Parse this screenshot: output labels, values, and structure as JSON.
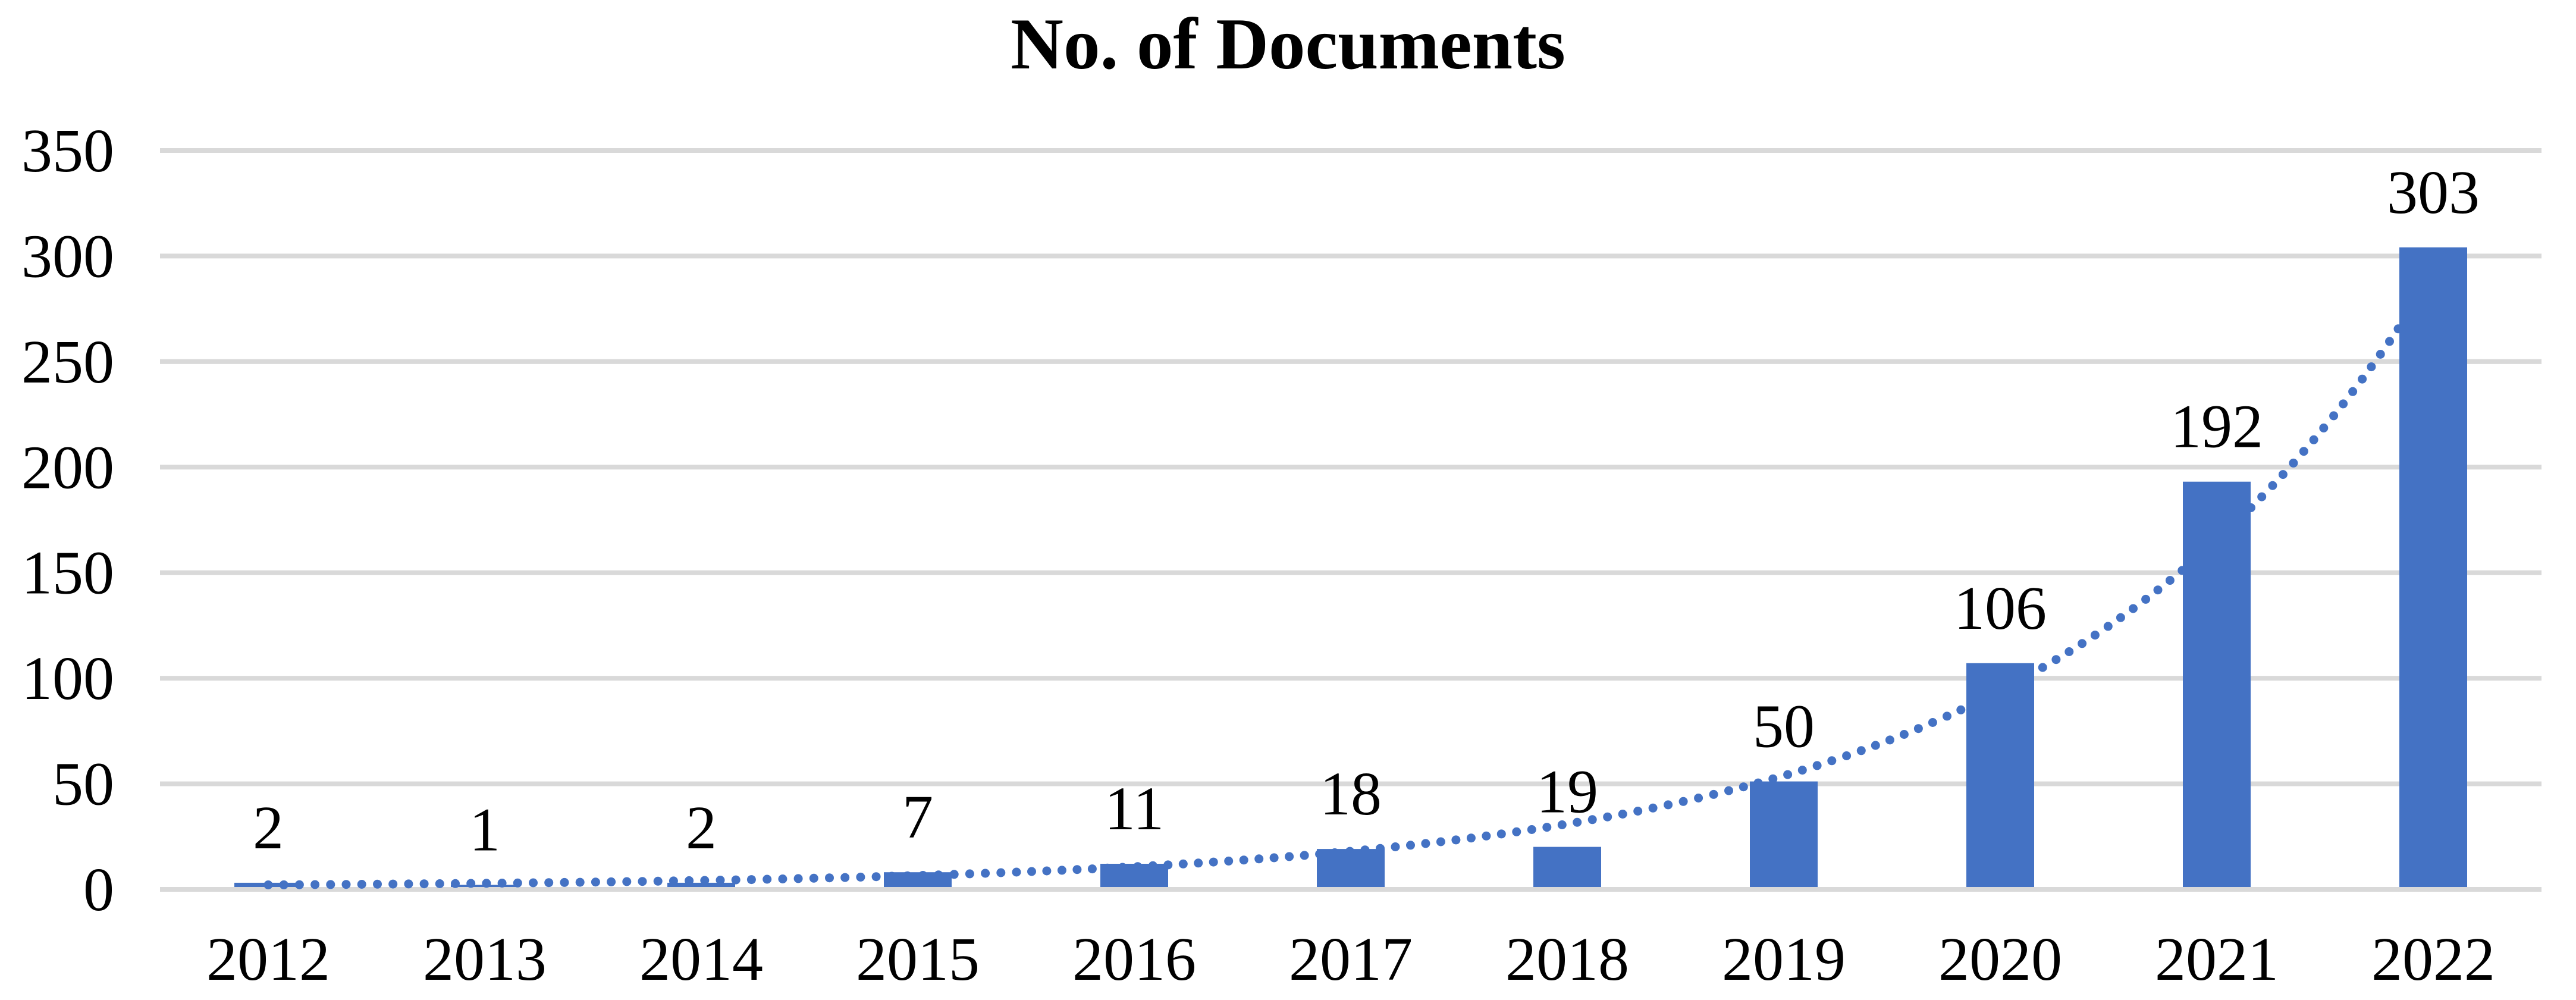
{
  "chart_data": {
    "type": "bar",
    "title": "No. of Documents",
    "categories": [
      "2012",
      "2013",
      "2014",
      "2015",
      "2016",
      "2017",
      "2018",
      "2019",
      "2020",
      "2021",
      "2022"
    ],
    "values": [
      2,
      1,
      2,
      7,
      11,
      18,
      19,
      50,
      106,
      192,
      303
    ],
    "data_labels": [
      "2",
      "1",
      "2",
      "7",
      "11",
      "18",
      "19",
      "50",
      "106",
      "192",
      "303"
    ],
    "xlabel": "",
    "ylabel": "",
    "ylim": [
      0,
      350
    ],
    "yticks": [
      0,
      50,
      100,
      150,
      200,
      250,
      300,
      350
    ],
    "ytick_labels": [
      "0",
      "50",
      "100",
      "150",
      "200",
      "250",
      "300",
      "350"
    ],
    "grid": true,
    "legend": "none",
    "trendline": {
      "type": "exponential",
      "style": "dotted",
      "coeff_a": 0.9866,
      "coeff_b": 0.5683,
      "span_categories": [
        0,
        10
      ],
      "drawn_behind_bars": true
    },
    "colors": {
      "bar": "#4472C4",
      "trendline": "#4472C4",
      "gridline": "#D9D9D9",
      "axis_line": "#D9D9D9",
      "text": "#000000",
      "background": "#FFFFFF"
    }
  }
}
